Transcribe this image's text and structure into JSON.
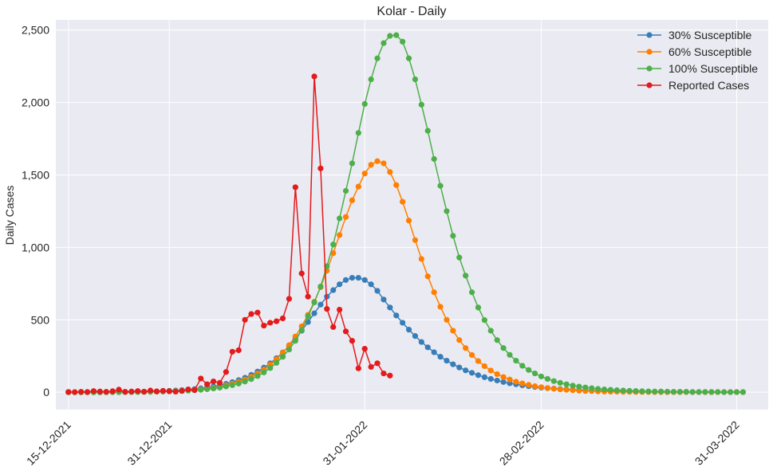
{
  "chart_data": {
    "type": "line",
    "title": "Kolar - Daily",
    "xlabel": "",
    "ylabel": "Daily Cases",
    "ylim": [
      -120,
      2570
    ],
    "x_range": [
      "2021-12-13",
      "2022-04-05"
    ],
    "y_ticks": [
      0,
      500,
      1000,
      1500,
      2000,
      2500
    ],
    "y_tick_labels": [
      "0",
      "500",
      "1,000",
      "1,500",
      "2,000",
      "2,500"
    ],
    "x_ticks": [
      "2021-12-15",
      "2021-12-31",
      "2022-01-31",
      "2022-02-28",
      "2022-03-31"
    ],
    "x_tick_labels": [
      "15-12-2021",
      "31-12-2021",
      "31-01-2022",
      "28-02-2022",
      "31-03-2022"
    ],
    "x_start": "2021-12-15",
    "grid": true,
    "legend_position": "top-right",
    "series": [
      {
        "name": "30% Susceptible",
        "color": "#377eb8",
        "values": [
          0,
          0,
          0,
          0,
          0,
          0,
          1,
          1,
          1,
          2,
          2,
          3,
          4,
          5,
          6,
          8,
          10,
          12,
          15,
          18,
          22,
          27,
          33,
          40,
          48,
          58,
          70,
          84,
          100,
          120,
          143,
          170,
          200,
          235,
          275,
          320,
          370,
          425,
          485,
          545,
          605,
          660,
          705,
          745,
          775,
          790,
          790,
          775,
          745,
          700,
          640,
          585,
          530,
          480,
          432,
          388,
          347,
          310,
          276,
          245,
          218,
          193,
          171,
          151,
          134,
          118,
          104,
          92,
          81,
          71,
          62,
          55,
          48,
          42,
          37,
          32,
          28,
          25,
          22,
          19,
          17,
          15,
          13,
          11,
          10,
          9,
          8,
          7,
          6,
          5,
          4,
          4,
          3,
          3,
          3,
          2,
          2,
          2,
          2,
          1,
          1,
          1,
          1,
          1,
          1,
          1,
          1,
          1
        ]
      },
      {
        "name": "60% Susceptible",
        "color": "#ff7f00",
        "values": [
          0,
          0,
          0,
          0,
          0,
          0,
          1,
          1,
          1,
          1,
          2,
          2,
          3,
          3,
          4,
          5,
          7,
          8,
          10,
          13,
          16,
          20,
          25,
          31,
          39,
          48,
          59,
          72,
          88,
          107,
          130,
          157,
          190,
          228,
          273,
          325,
          385,
          455,
          535,
          625,
          725,
          840,
          960,
          1085,
          1210,
          1325,
          1420,
          1510,
          1570,
          1595,
          1580,
          1520,
          1430,
          1315,
          1185,
          1050,
          920,
          800,
          690,
          590,
          500,
          425,
          360,
          305,
          257,
          215,
          180,
          150,
          125,
          105,
          88,
          73,
          61,
          51,
          42,
          35,
          29,
          24,
          20,
          17,
          14,
          11,
          9,
          8,
          6,
          5,
          4,
          4,
          3,
          3,
          2,
          2,
          2,
          1,
          1,
          1,
          1,
          1,
          1,
          1,
          1,
          1,
          1,
          1,
          1,
          1,
          1,
          1
        ]
      },
      {
        "name": "100% Susceptible",
        "color": "#4daf4a",
        "values": [
          0,
          0,
          0,
          0,
          0,
          0,
          0,
          1,
          1,
          1,
          1,
          2,
          2,
          3,
          4,
          5,
          6,
          7,
          9,
          11,
          14,
          17,
          21,
          26,
          32,
          40,
          49,
          60,
          74,
          91,
          112,
          137,
          167,
          203,
          245,
          295,
          355,
          430,
          525,
          620,
          730,
          870,
          1020,
          1200,
          1390,
          1580,
          1790,
          1990,
          2160,
          2305,
          2410,
          2460,
          2465,
          2420,
          2305,
          2160,
          1985,
          1805,
          1610,
          1425,
          1250,
          1080,
          930,
          805,
          690,
          585,
          498,
          425,
          360,
          305,
          258,
          218,
          183,
          154,
          130,
          109,
          92,
          77,
          65,
          55,
          46,
          39,
          33,
          28,
          23,
          20,
          17,
          14,
          12,
          10,
          9,
          7,
          6,
          5,
          5,
          4,
          3,
          3,
          3,
          2,
          2,
          2,
          2,
          2,
          1,
          1,
          1,
          1
        ]
      },
      {
        "name": "Reported Cases",
        "color": "#e41a1c",
        "values": [
          2,
          1,
          3,
          2,
          8,
          5,
          3,
          7,
          18,
          3,
          5,
          8,
          4,
          12,
          6,
          10,
          7,
          4,
          9,
          20,
          15,
          95,
          55,
          75,
          65,
          140,
          280,
          290,
          500,
          540,
          550,
          460,
          480,
          490,
          510,
          645,
          1415,
          820,
          660,
          2180,
          1545,
          575,
          450,
          570,
          420,
          355,
          165,
          300,
          175,
          200,
          130,
          115
        ]
      }
    ]
  }
}
